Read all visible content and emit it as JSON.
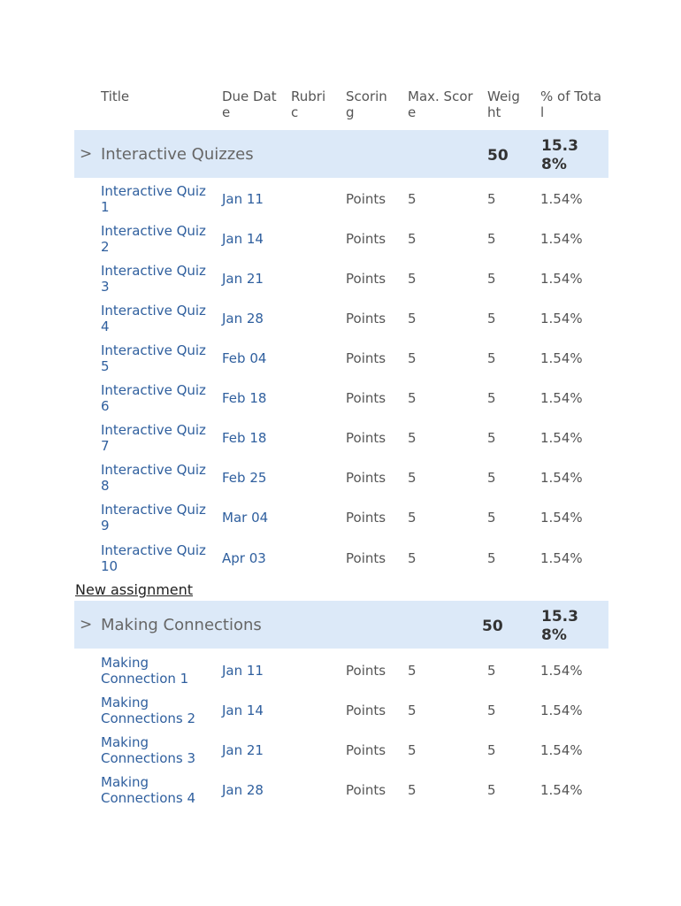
{
  "columns": {
    "title": "Title",
    "due_date": "Due Date",
    "rubric": "Rubric",
    "scoring": "Scoring",
    "max_score": "Max. Score",
    "weight": "Weight",
    "pct_total": "% of Total"
  },
  "groups": [
    {
      "chevron": ">",
      "title": "Interactive Quizzes",
      "weight": "50",
      "pct": "15.38%",
      "items": [
        {
          "title": "Interactive Quiz 1",
          "due": "Jan 11",
          "scoring": "Points",
          "max": "5",
          "weight": "5",
          "pct": "1.54%"
        },
        {
          "title": "Interactive Quiz 2",
          "due": "Jan 14",
          "scoring": "Points",
          "max": "5",
          "weight": "5",
          "pct": "1.54%"
        },
        {
          "title": "Interactive Quiz 3",
          "due": "Jan 21",
          "scoring": "Points",
          "max": "5",
          "weight": "5",
          "pct": "1.54%"
        },
        {
          "title": "Interactive Quiz 4",
          "due": "Jan 28",
          "scoring": "Points",
          "max": "5",
          "weight": "5",
          "pct": "1.54%"
        },
        {
          "title": "Interactive Quiz 5",
          "due": "Feb 04",
          "scoring": "Points",
          "max": "5",
          "weight": "5",
          "pct": "1.54%"
        },
        {
          "title": "Interactive Quiz 6",
          "due": "Feb 18",
          "scoring": "Points",
          "max": "5",
          "weight": "5",
          "pct": "1.54%"
        },
        {
          "title": "Interactive Quiz 7",
          "due": "Feb 18",
          "scoring": "Points",
          "max": "5",
          "weight": "5",
          "pct": "1.54%"
        },
        {
          "title": "Interactive Quiz 8",
          "due": "Feb 25",
          "scoring": "Points",
          "max": "5",
          "weight": "5",
          "pct": "1.54%"
        },
        {
          "title": "Interactive Quiz 9",
          "due": "Mar 04",
          "scoring": "Points",
          "max": "5",
          "weight": "5",
          "pct": "1.54%"
        },
        {
          "title": "Interactive Quiz 10",
          "due": "Apr 03",
          "scoring": "Points",
          "max": "5",
          "weight": "5",
          "pct": "1.54%"
        }
      ]
    },
    {
      "chevron": ">",
      "title": "Making Connections",
      "weight": "50",
      "pct": "15.38%",
      "items": [
        {
          "title": "Making Connection 1",
          "due": "Jan 11",
          "scoring": "Points",
          "max": "5",
          "weight": "5",
          "pct": "1.54%"
        },
        {
          "title": "Making Connections 2",
          "due": "Jan 14",
          "scoring": "Points",
          "max": "5",
          "weight": "5",
          "pct": "1.54%"
        },
        {
          "title": "Making Connections 3",
          "due": "Jan 21",
          "scoring": "Points",
          "max": "5",
          "weight": "5",
          "pct": "1.54%"
        },
        {
          "title": "Making Connections 4",
          "due": "Jan 28",
          "scoring": "Points",
          "max": "5",
          "weight": "5",
          "pct": "1.54%"
        }
      ]
    }
  ],
  "new_assignment_label": "New assignment"
}
